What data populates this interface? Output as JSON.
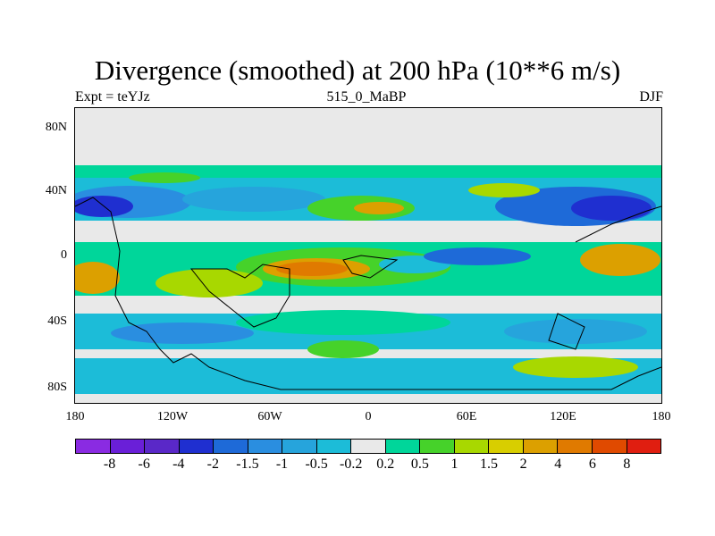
{
  "chart_data": {
    "type": "heatmap",
    "title": "Divergence (smoothed) at 200 hPa (10**6 m/s)",
    "subtitle_left": "Expt = teYJz",
    "subtitle_center": "515_0_MaBP",
    "subtitle_right": "DJF",
    "x_range": [
      -180,
      180
    ],
    "y_range": [
      -90,
      90
    ],
    "x_ticks": [
      {
        "value": -180,
        "label": "180"
      },
      {
        "value": -120,
        "label": "120W"
      },
      {
        "value": -60,
        "label": "60W"
      },
      {
        "value": 0,
        "label": "0"
      },
      {
        "value": 60,
        "label": "60E"
      },
      {
        "value": 120,
        "label": "120E"
      },
      {
        "value": 180,
        "label": "180"
      }
    ],
    "y_ticks": [
      {
        "value": 80,
        "label": "80N"
      },
      {
        "value": 40,
        "label": "40N"
      },
      {
        "value": 0,
        "label": "0"
      },
      {
        "value": -40,
        "label": "40S"
      },
      {
        "value": -80,
        "label": "80S"
      }
    ],
    "colorbar": {
      "colors": [
        "#8a2be2",
        "#6a1fd8",
        "#5a28c8",
        "#1f2fd0",
        "#1e6ad8",
        "#2a8ee0",
        "#26a4dc",
        "#1cbcd8",
        "#e9e9e9",
        "#00d69a",
        "#46d22a",
        "#a8d800",
        "#d8ce00",
        "#dca000",
        "#e07a00",
        "#e04a00",
        "#e01e10"
      ],
      "labels": [
        "-8",
        "-6",
        "-4",
        "-2",
        "-1.5",
        "-1",
        "-0.5",
        "-0.2",
        "0.2",
        "0.5",
        "1",
        "1.5",
        "2",
        "4",
        "6",
        "8"
      ]
    }
  }
}
